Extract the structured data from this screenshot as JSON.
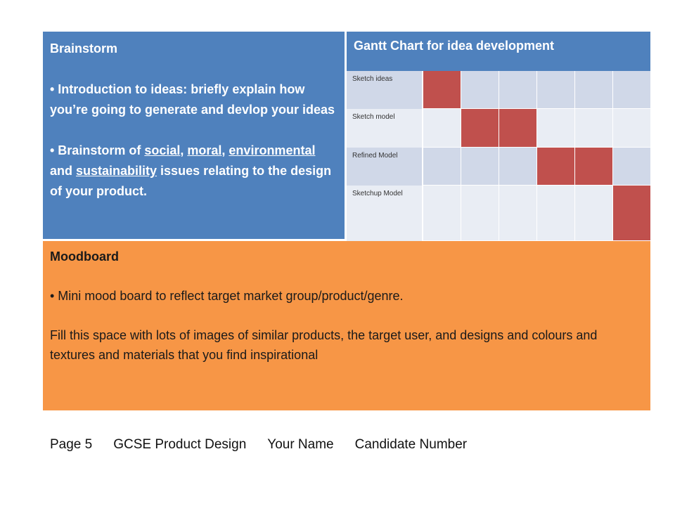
{
  "brainstorm": {
    "title": "Brainstorm",
    "bullet1": "• Introduction to ideas: briefly explain how you’re going to generate and devlop your ideas",
    "bullet2_pre": "• Brainstorm of ",
    "social": "social",
    "comma1": ", ",
    "moral": "moral",
    "comma2": ", ",
    "environmental": "environmental",
    "and_text": " and ",
    "sustainability": "sustainability",
    "bullet2_post": " issues relating to the design of your product."
  },
  "gantt": {
    "title": "Gantt Chart for idea development",
    "filled_color": "#c0504d",
    "rows": [
      {
        "label": "Sketch ideas",
        "filled": [
          0
        ]
      },
      {
        "label": "Sketch model",
        "filled": [
          1,
          2
        ]
      },
      {
        "label": "Refined Model",
        "filled": [
          3,
          4
        ]
      },
      {
        "label": "Sketchup Model",
        "filled": [
          5
        ]
      }
    ],
    "columns": 6
  },
  "moodboard": {
    "title": "Moodboard",
    "bullet": "• Mini mood board to reflect target market group/product/genre.",
    "body": "Fill this space with lots of images of similar products, the target user, and designs and colours and textures and materials that you find inspirational"
  },
  "footer": {
    "page": "Page 5",
    "course": "GCSE Product Design",
    "name": "Your Name",
    "candidate": "Candidate Number"
  }
}
